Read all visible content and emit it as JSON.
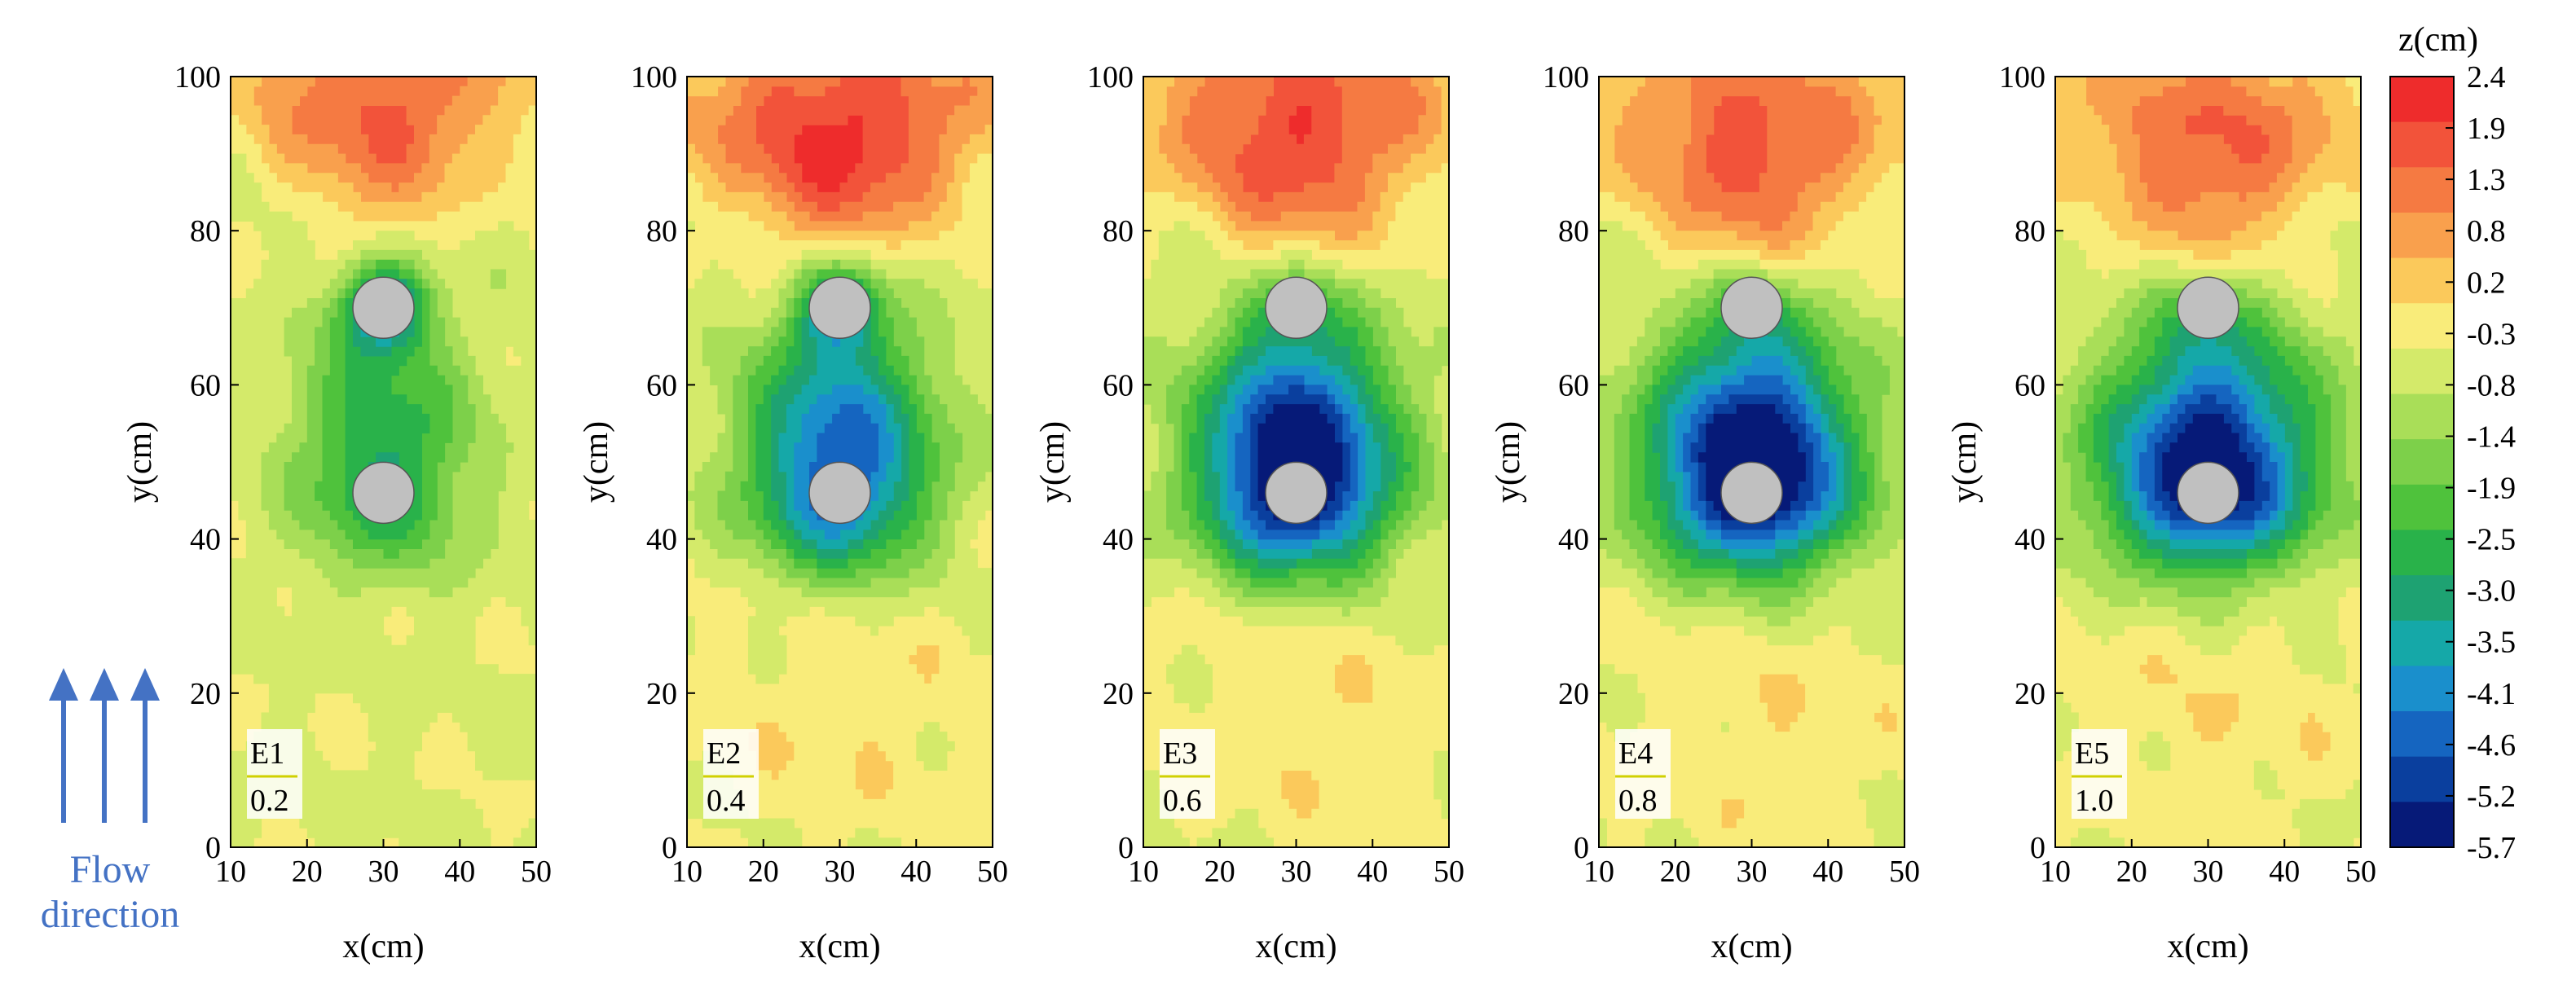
{
  "chart_data": {
    "type": "heatmap",
    "xlabel": "x(cm)",
    "ylabel": "y(cm)",
    "xlim": [
      10,
      50
    ],
    "ylim": [
      0,
      100
    ],
    "xticks": [
      10,
      20,
      30,
      40,
      50
    ],
    "yticks": [
      0,
      20,
      40,
      60,
      80,
      100
    ],
    "colorbar": {
      "title": "z(cm)",
      "ticks": [
        "2.4",
        "1.9",
        "1.3",
        "0.8",
        "0.2",
        "-0.3",
        "-0.8",
        "-1.4",
        "-1.9",
        "-2.5",
        "-3.0",
        "-3.5",
        "-4.1",
        "-4.6",
        "-5.2",
        "-5.7"
      ],
      "range": [
        -5.7,
        2.4
      ],
      "colors": [
        "#ee2c2c",
        "#f2533a",
        "#f57a42",
        "#f9a04d",
        "#fbc95b",
        "#f9ec7a",
        "#d4ea6a",
        "#a9de58",
        "#7dd04a",
        "#4fc23c",
        "#29b24a",
        "#1ea272",
        "#15a8a8",
        "#1a8fcc",
        "#1565c0",
        "#0a3f9e",
        "#061a78"
      ]
    },
    "piers": [
      {
        "x": 30,
        "y": 70,
        "diameter_cm": 8
      },
      {
        "x": 30,
        "y": 46,
        "diameter_cm": 8
      }
    ],
    "panels": [
      {
        "id": "E1",
        "value": "0.2",
        "deposit_peak": 1.6,
        "deposit_y": 96,
        "deposit_width": 7,
        "upstream_pier_min": -3.2,
        "downstream_pier_min": -2.6
      },
      {
        "id": "E2",
        "value": "0.4",
        "deposit_peak": 2.2,
        "deposit_y": 92,
        "deposit_width": 9,
        "upstream_pier_min": -2.8,
        "downstream_pier_min": -4.3
      },
      {
        "id": "E3",
        "value": "0.6",
        "deposit_peak": 2.0,
        "deposit_y": 92,
        "deposit_width": 9,
        "upstream_pier_min": -1.2,
        "downstream_pier_min": -5.6
      },
      {
        "id": "E4",
        "value": "0.8",
        "deposit_peak": 1.8,
        "deposit_y": 90,
        "deposit_width": 9,
        "upstream_pier_min": -1.1,
        "downstream_pier_min": -5.7
      },
      {
        "id": "E5",
        "value": "1.0",
        "deposit_peak": 1.6,
        "deposit_y": 90,
        "deposit_width": 9,
        "upstream_pier_min": -1.0,
        "downstream_pier_min": -5.2
      }
    ]
  },
  "annotation": {
    "flow_label_line1": "Flow",
    "flow_label_line2": "direction",
    "arrow_color": "#4472c4"
  }
}
